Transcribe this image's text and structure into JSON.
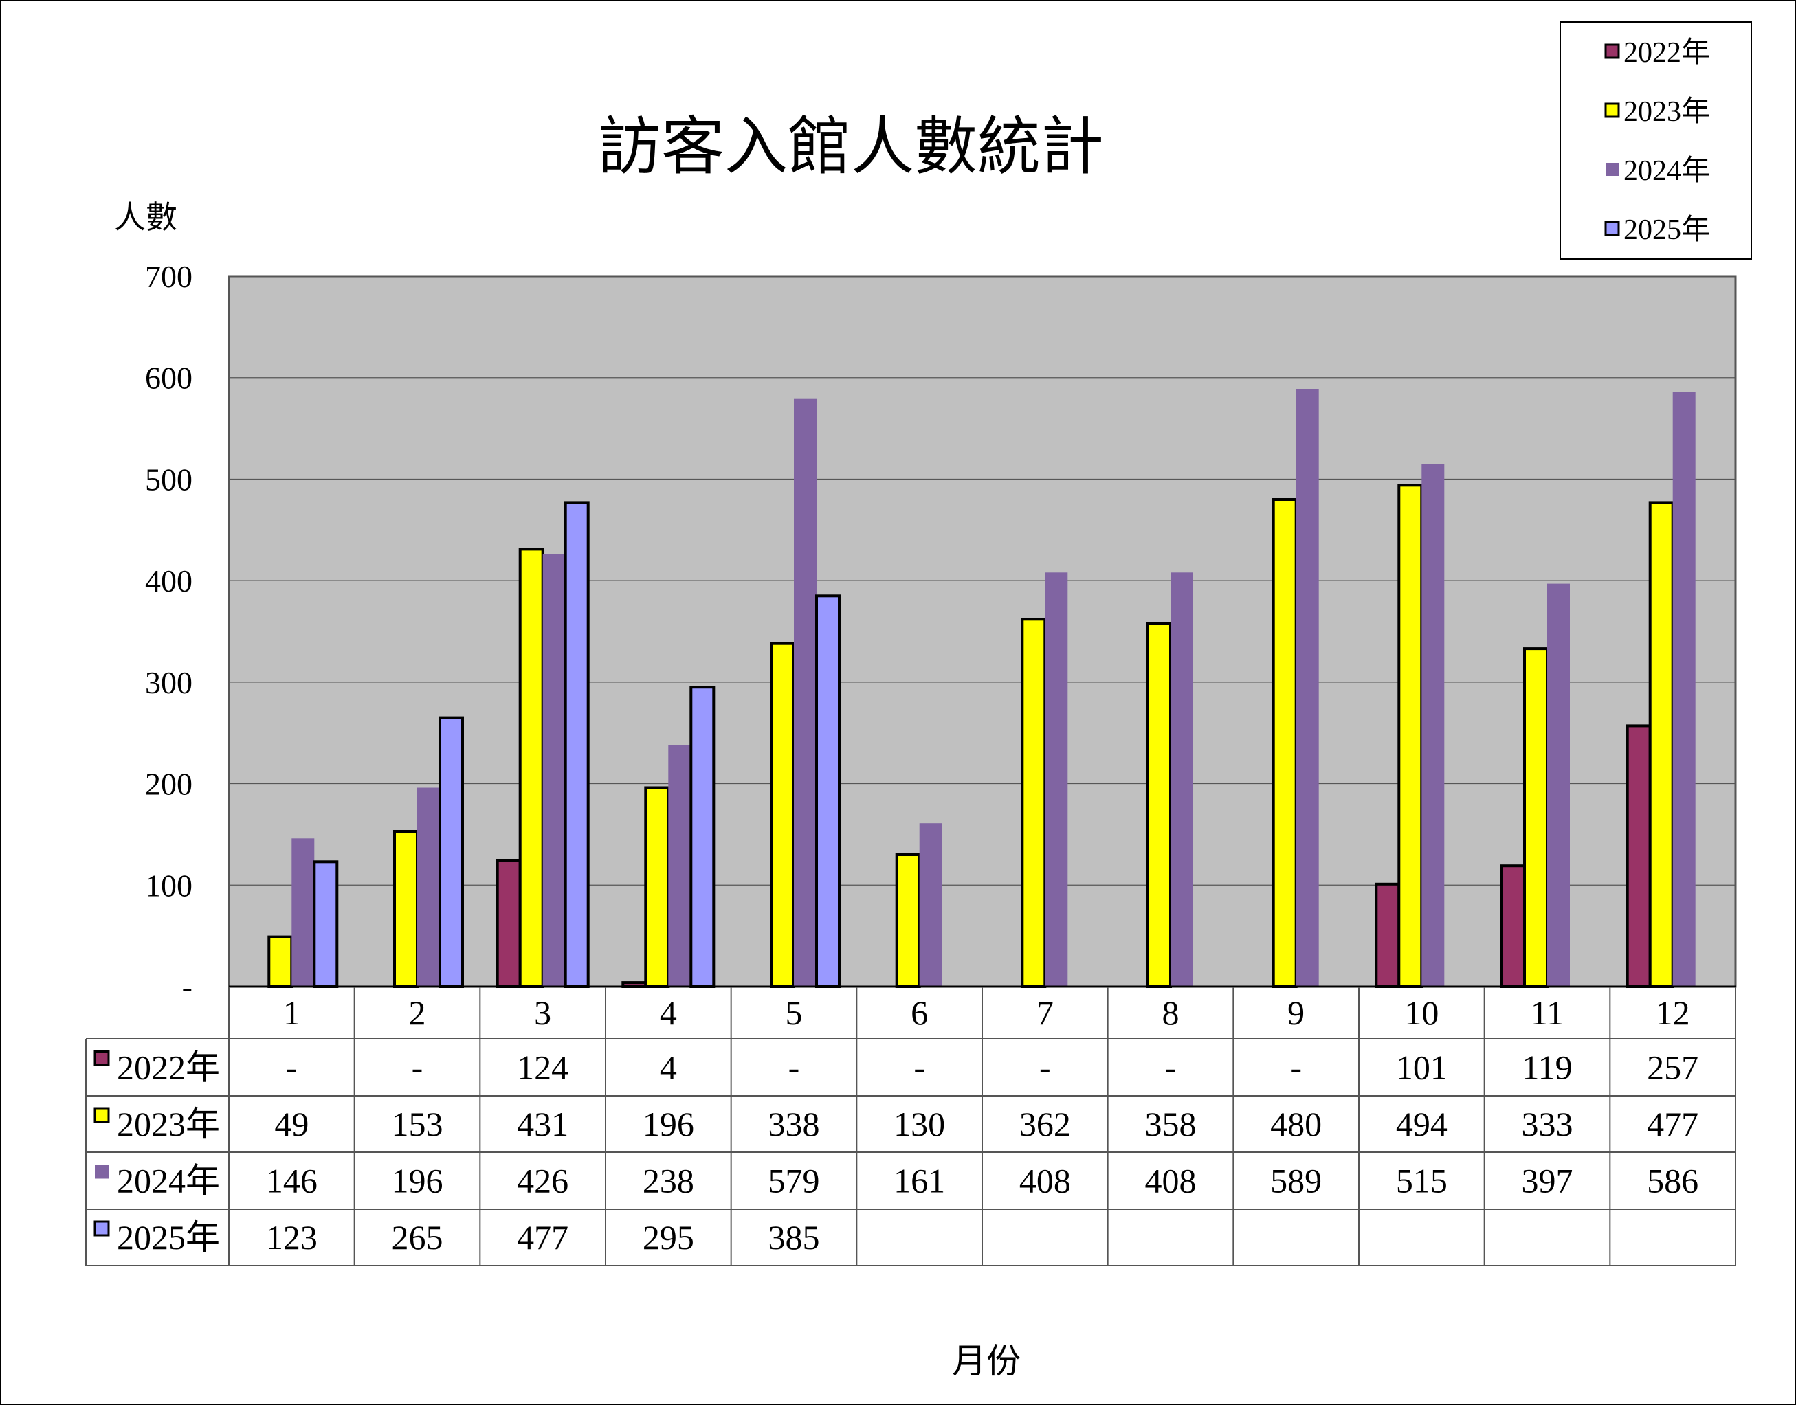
{
  "chart_data": {
    "type": "bar",
    "title": "訪客入館人數統計",
    "ylabel": "人數",
    "xlabel": "月份",
    "ylim": [
      0,
      700
    ],
    "yticks": [
      0,
      100,
      200,
      300,
      400,
      500,
      600,
      700
    ],
    "ytick_labels": [
      "-",
      "100",
      "200",
      "300",
      "400",
      "500",
      "600",
      "700"
    ],
    "grid": true,
    "legend_position": "top-right",
    "categories": [
      "1",
      "2",
      "3",
      "4",
      "5",
      "6",
      "7",
      "8",
      "9",
      "10",
      "11",
      "12"
    ],
    "series": [
      {
        "name": "2022年",
        "color": "#993366",
        "outlined": true,
        "values": [
          null,
          null,
          124,
          4,
          null,
          null,
          null,
          null,
          null,
          101,
          119,
          257
        ],
        "table": [
          "-",
          "-",
          "124",
          "4",
          "-",
          "-",
          "-",
          "-",
          "-",
          "101",
          "119",
          "257"
        ]
      },
      {
        "name": "2023年",
        "color": "#FFFF00",
        "outlined": true,
        "values": [
          49,
          153,
          431,
          196,
          338,
          130,
          362,
          358,
          480,
          494,
          333,
          477
        ],
        "table": [
          "49",
          "153",
          "431",
          "196",
          "338",
          "130",
          "362",
          "358",
          "480",
          "494",
          "333",
          "477"
        ]
      },
      {
        "name": "2024年",
        "color": "#8064A2",
        "outlined": false,
        "values": [
          146,
          196,
          426,
          238,
          579,
          161,
          408,
          408,
          589,
          515,
          397,
          586
        ],
        "table": [
          "146",
          "196",
          "426",
          "238",
          "579",
          "161",
          "408",
          "408",
          "589",
          "515",
          "397",
          "586"
        ]
      },
      {
        "name": "2025年",
        "color": "#9999FF",
        "outlined": true,
        "values": [
          123,
          265,
          477,
          295,
          385,
          null,
          null,
          null,
          null,
          null,
          null,
          null
        ],
        "table": [
          "123",
          "265",
          "477",
          "295",
          "385",
          "",
          "",
          "",
          "",
          "",
          "",
          ""
        ]
      }
    ],
    "colors": {
      "plot_background": "#C0C0C0",
      "gridline": "#000000",
      "bar_outline": "#000000"
    }
  }
}
